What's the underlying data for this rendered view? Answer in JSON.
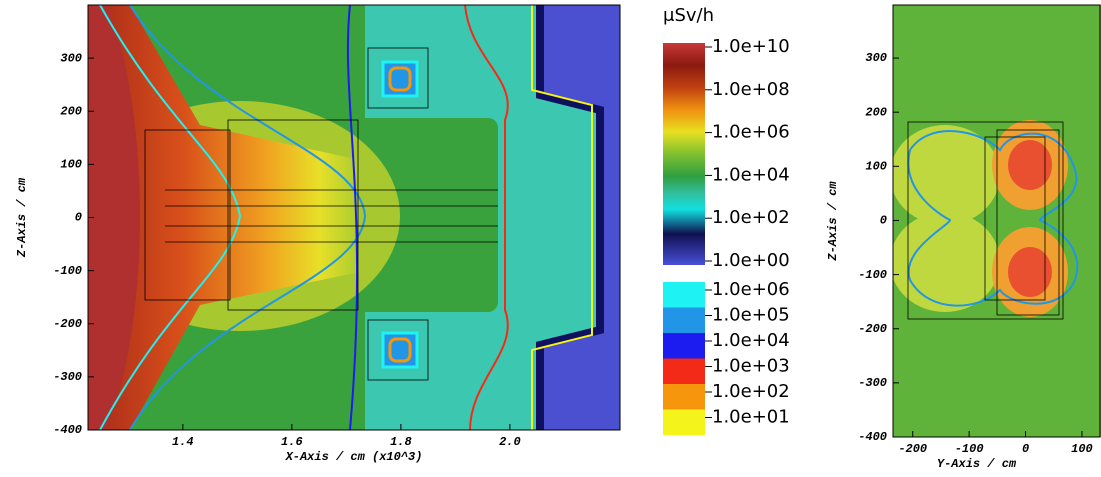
{
  "chart_data": [
    {
      "type": "heatmap",
      "x_label": "X-Axis / cm (x10^3)",
      "y_label": "Z-Axis / cm",
      "xlim": [
        1.226,
        2.202
      ],
      "xticks": [
        1.4,
        1.6,
        1.8,
        {
          "value": 2.0,
          "label": "2.0"
        }
      ],
      "ylim": [
        -400,
        400
      ],
      "yticks": [
        -400,
        -300,
        -200,
        -100,
        0,
        100,
        200,
        300
      ],
      "colorbar": {
        "label": "μSv/h",
        "scale": "log",
        "lim": [
          1,
          10000000000
        ],
        "ticks": [
          {
            "value": 10000000000,
            "label": "1.0e+10"
          },
          {
            "value": 100000000,
            "label": "1.0e+08"
          },
          {
            "value": 1000000,
            "label": "1.0e+06"
          },
          {
            "value": 10000,
            "label": "1.0e+04"
          },
          {
            "value": 100,
            "label": "1.0e+02"
          },
          {
            "value": 1,
            "label": "1.0e+00"
          }
        ]
      },
      "contours": [
        {
          "value": 1000000,
          "label": "1.0e+06",
          "color": "#1ef2f2"
        },
        {
          "value": 100000,
          "label": "1.0e+05",
          "color": "#2196e6"
        },
        {
          "value": 10000,
          "label": "1.0e+04",
          "color": "#1c1cf0"
        },
        {
          "value": 1000,
          "label": "1.0e+03",
          "color": "#f42a18"
        },
        {
          "value": 100,
          "label": "1.0e+02",
          "color": "#f5960c"
        },
        {
          "value": 10,
          "label": "1.0e+01",
          "color": "#f4f41a"
        }
      ]
    },
    {
      "type": "heatmap",
      "x_label": "Y-Axis / cm",
      "y_label": "Z-Axis / cm",
      "xlim": [
        -235,
        132
      ],
      "xticks": [
        -200,
        -100,
        0,
        100
      ],
      "ylim": [
        -400,
        398
      ],
      "yticks": [
        -400,
        -300,
        -200,
        -100,
        0,
        100,
        200,
        300
      ]
    }
  ]
}
